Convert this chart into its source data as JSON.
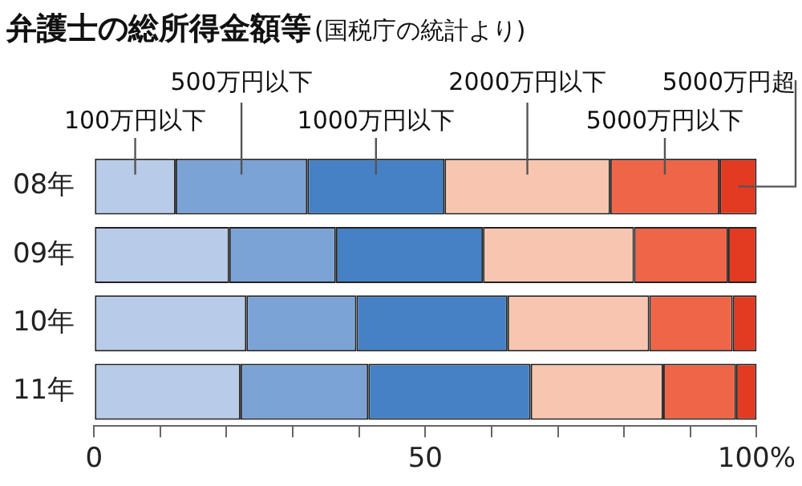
{
  "chart_data": {
    "type": "bar",
    "orientation": "horizontal",
    "stacked": true,
    "title": "弁護士の総所得金額等",
    "subtitle": "(国税庁の統計より)",
    "categories": [
      "08年",
      "09年",
      "10年",
      "11年"
    ],
    "series": [
      {
        "name": "100万円以下",
        "color": "#b8cbe8",
        "values": [
          12.3,
          20.4,
          23.0,
          22.1
        ]
      },
      {
        "name": "500万円以下",
        "color": "#7ba3d6",
        "values": [
          19.9,
          16.1,
          16.6,
          19.3
        ]
      },
      {
        "name": "1000万円以下",
        "color": "#4581c4",
        "values": [
          20.7,
          22.2,
          22.8,
          24.5
        ]
      },
      {
        "name": "2000万円以下",
        "color": "#f8c6b0",
        "values": [
          25.0,
          22.8,
          21.4,
          20.0
        ]
      },
      {
        "name": "5000万円以下",
        "color": "#ee6548",
        "values": [
          16.5,
          14.2,
          12.6,
          11.0
        ]
      },
      {
        "name": "5000万円超",
        "color": "#e33a22",
        "values": [
          5.6,
          4.3,
          3.6,
          3.1
        ]
      }
    ],
    "xlim": [
      0,
      100
    ],
    "xticks": [
      0,
      {
        "value": 10,
        "label": null
      },
      {
        "value": 20,
        "label": null
      },
      {
        "value": 30,
        "label": null
      },
      {
        "value": 40,
        "label": null
      },
      50,
      {
        "value": 60,
        "label": null
      },
      {
        "value": 70,
        "label": null
      },
      {
        "value": 80,
        "label": null
      },
      {
        "value": 90,
        "label": null
      },
      {
        "value": 100,
        "label": "100%"
      }
    ],
    "grid": false,
    "legend": false
  }
}
